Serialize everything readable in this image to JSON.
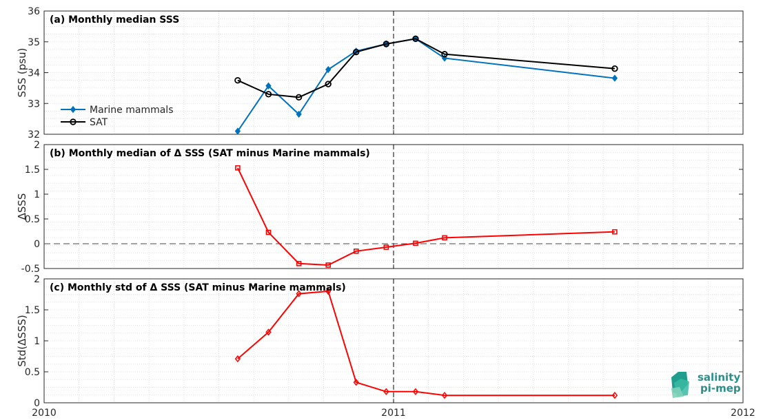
{
  "chart_data": [
    {
      "type": "line",
      "title": "(a) Monthly median SSS",
      "ylabel": "SSS (psu)",
      "xlim": [
        2010,
        2012
      ],
      "ylim": [
        32,
        36
      ],
      "yticks": [
        32,
        33,
        34,
        35,
        36
      ],
      "grid": true,
      "legend_position": "left",
      "series": [
        {
          "name": "Marine mammals",
          "color": "#0072BD",
          "marker": "diamond",
          "x": [
            2010.554,
            2010.642,
            2010.729,
            2010.813,
            2010.893,
            2010.979,
            2011.063,
            2011.146,
            2011.633
          ],
          "y": [
            32.1,
            33.57,
            32.65,
            34.1,
            34.7,
            34.93,
            35.1,
            34.47,
            33.82
          ]
        },
        {
          "name": "SAT",
          "color": "#000000",
          "marker": "circle",
          "x": [
            2010.554,
            2010.642,
            2010.729,
            2010.813,
            2010.893,
            2010.979,
            2011.063,
            2011.146,
            2011.633
          ],
          "y": [
            33.75,
            33.3,
            33.2,
            33.63,
            34.67,
            34.93,
            35.1,
            34.6,
            34.13
          ]
        }
      ],
      "vline_x": 2011
    },
    {
      "type": "line",
      "title": "(b) Monthly median of Δ SSS (SAT minus Marine mammals)",
      "ylabel": "ΔSSS",
      "xlim": [
        2010,
        2012
      ],
      "ylim": [
        -0.5,
        2
      ],
      "yticks": [
        -0.5,
        0,
        0.5,
        1,
        1.5,
        2
      ],
      "ytick_labels": [
        "-0.5",
        "0",
        "0.5",
        "1",
        "1.5",
        "2"
      ],
      "grid": true,
      "hline_y": 0,
      "series": [
        {
          "color": "#FF0000",
          "marker": "square",
          "x": [
            2010.554,
            2010.642,
            2010.729,
            2010.813,
            2010.893,
            2010.979,
            2011.063,
            2011.146,
            2011.633
          ],
          "y": [
            1.53,
            0.23,
            -0.4,
            -0.43,
            -0.15,
            -0.07,
            0.01,
            0.12,
            0.24
          ]
        }
      ],
      "vline_x": 2011
    },
    {
      "type": "line",
      "title": "(c) Monthly std of Δ SSS (SAT minus Marine mammals)",
      "ylabel": "Std(ΔSSS)",
      "xlim": [
        2010,
        2012
      ],
      "ylim": [
        0,
        2
      ],
      "yticks": [
        0,
        0.5,
        1,
        1.5,
        2
      ],
      "ytick_labels": [
        "0",
        "0.5",
        "1",
        "1.5",
        "2"
      ],
      "xticks": [
        2010,
        2011,
        2012
      ],
      "xtick_labels": [
        "2010",
        "2011",
        "2012"
      ],
      "grid": true,
      "series": [
        {
          "color": "#FF0000",
          "marker": "diamond",
          "x": [
            2010.554,
            2010.642,
            2010.729,
            2010.813,
            2010.893,
            2010.979,
            2011.063,
            2011.146,
            2011.633
          ],
          "y": [
            0.71,
            1.14,
            1.76,
            1.8,
            0.33,
            0.18,
            0.18,
            0.12,
            0.12
          ]
        }
      ],
      "vline_x": 2011
    }
  ],
  "logo": {
    "line1": "salinity",
    "line2": "pi-mep",
    "color": "#2a8f8a"
  }
}
